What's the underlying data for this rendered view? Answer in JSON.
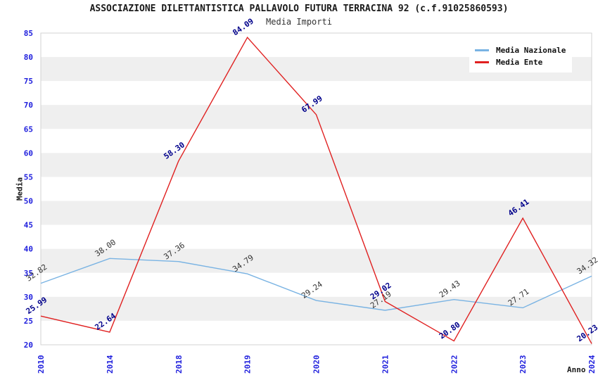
{
  "chart_data": {
    "type": "line",
    "title": "ASSOCIAZIONE DILETTANTISTICA PALLAVOLO FUTURA TERRACINA 92 (c.f.91025860593)",
    "subtitle": "Media Importi",
    "xlabel": "Anno",
    "ylabel": "Media",
    "categories": [
      "2010",
      "2014",
      "2018",
      "2019",
      "2020",
      "2021",
      "2022",
      "2023",
      "2024"
    ],
    "series": [
      {
        "name": "Media Nazionale",
        "color": "#79B3E3",
        "label_color": "#333333",
        "label_weight": "normal",
        "values": [
          32.82,
          38.0,
          37.36,
          34.79,
          29.24,
          27.19,
          29.43,
          27.71,
          34.32
        ],
        "labels": [
          "32.82",
          "38.00",
          "37.36",
          "34.79",
          "29.24",
          "27.19",
          "29.43",
          "27.71",
          "34.32"
        ]
      },
      {
        "name": "Media Ente",
        "color": "#E02020",
        "label_color": "#00008B",
        "label_weight": "bold",
        "values": [
          25.99,
          22.64,
          58.3,
          84.09,
          67.99,
          29.02,
          20.8,
          46.41,
          20.23
        ],
        "labels": [
          "25.99",
          "22.64",
          "58.30",
          "84.09",
          "67.99",
          "29.02",
          "20.80",
          "46.41",
          "20.23"
        ]
      }
    ],
    "ylim": [
      20,
      85
    ],
    "ytick_step": 5,
    "legend_position": "top-right",
    "grid": "horizontal-bands",
    "colors": {
      "tick_label": "#2020DD",
      "band_base": "#FFFFFF",
      "band_alt": "#EFEFEF",
      "plot_border": "#D3D3D3"
    }
  }
}
